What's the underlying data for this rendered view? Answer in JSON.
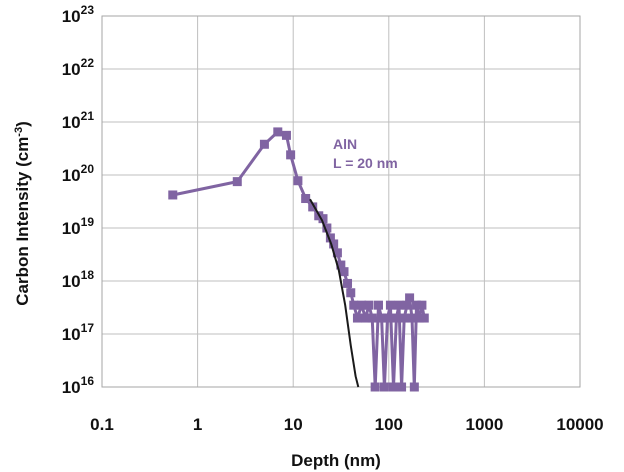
{
  "chart_data": {
    "type": "scatter",
    "title": "",
    "xlabel": "Depth (nm)",
    "ylabel_parts": {
      "prefix": "Carbon Intensity (cm",
      "sup": "-3",
      "suffix": ")"
    },
    "x_scale": "log",
    "y_scale": "log",
    "xlim": [
      0.1,
      10000
    ],
    "ylim": [
      1e+16,
      1e+23
    ],
    "grid": true,
    "legend": "none",
    "x_ticks": [
      "0.1",
      "1",
      "10",
      "100",
      "1000",
      "10000"
    ],
    "y_ticks": [
      {
        "base": "10",
        "exp": "16"
      },
      {
        "base": "10",
        "exp": "17"
      },
      {
        "base": "10",
        "exp": "18"
      },
      {
        "base": "10",
        "exp": "19"
      },
      {
        "base": "10",
        "exp": "20"
      },
      {
        "base": "10",
        "exp": "21"
      },
      {
        "base": "10",
        "exp": "22"
      },
      {
        "base": "10",
        "exp": "23"
      }
    ],
    "annotations": [
      "AlN",
      "L = 20 nm"
    ],
    "colors": {
      "series": "#8064a2",
      "fit": "#1a1a1a",
      "grid": "#bfbfbf"
    },
    "series": [
      {
        "marker": "square",
        "points": [
          [
            0.55,
            4.2e+19
          ],
          [
            2.6,
            7.5e+19
          ],
          [
            5.0,
            3.8e+20
          ],
          [
            6.9,
            6.5e+20
          ],
          [
            8.5,
            5.6e+20
          ],
          [
            9.4,
            2.4e+20
          ],
          [
            11.2,
            7.8e+19
          ],
          [
            13.5,
            3.6e+19
          ],
          [
            16.0,
            2.5e+19
          ],
          [
            18.5,
            1.7e+19
          ],
          [
            20.5,
            1.5e+19
          ],
          [
            22.5,
            1e+19
          ],
          [
            24.5,
            6.5e+18
          ],
          [
            26.5,
            5e+18
          ],
          [
            29.0,
            3.4e+18
          ],
          [
            31.5,
            2e+18
          ],
          [
            34.0,
            1.5e+18
          ],
          [
            37.0,
            9e+17
          ],
          [
            40.0,
            6e+17
          ],
          [
            43.0,
            3.5e+17
          ],
          [
            47.0,
            2e+17
          ],
          [
            52.0,
            3.5e+17
          ],
          [
            57.0,
            2e+17
          ],
          [
            62.0,
            3.5e+17
          ],
          [
            67.0,
            2e+17
          ],
          [
            72.0,
            1e+16
          ],
          [
            78.0,
            3.5e+17
          ],
          [
            84.0,
            2e+17
          ],
          [
            90.0,
            1e+16
          ],
          [
            97.0,
            2e+17
          ],
          [
            104.0,
            3.5e+17
          ],
          [
            112.0,
            1e+16
          ],
          [
            120.0,
            2e+17
          ],
          [
            128.0,
            3.5e+17
          ],
          [
            136.0,
            1e+16
          ],
          [
            145.0,
            2e+17
          ],
          [
            155.0,
            3.5e+17
          ],
          [
            165.0,
            4.8e+17
          ],
          [
            175.0,
            2e+17
          ],
          [
            185.0,
            1e+16
          ],
          [
            195.0,
            3.5e+17
          ],
          [
            208.0,
            2e+17
          ],
          [
            222.0,
            3.5e+17
          ],
          [
            235.0,
            2e+17
          ]
        ]
      }
    ],
    "fit_line": {
      "points": [
        [
          15,
          3.5e+19
        ],
        [
          20,
          1.4e+19
        ],
        [
          25,
          5e+18
        ],
        [
          30,
          1.6e+18
        ],
        [
          35,
          3.5e+17
        ],
        [
          40,
          6e+16
        ],
        [
          45,
          1.6e+16
        ],
        [
          48,
          1e+16
        ]
      ]
    }
  }
}
